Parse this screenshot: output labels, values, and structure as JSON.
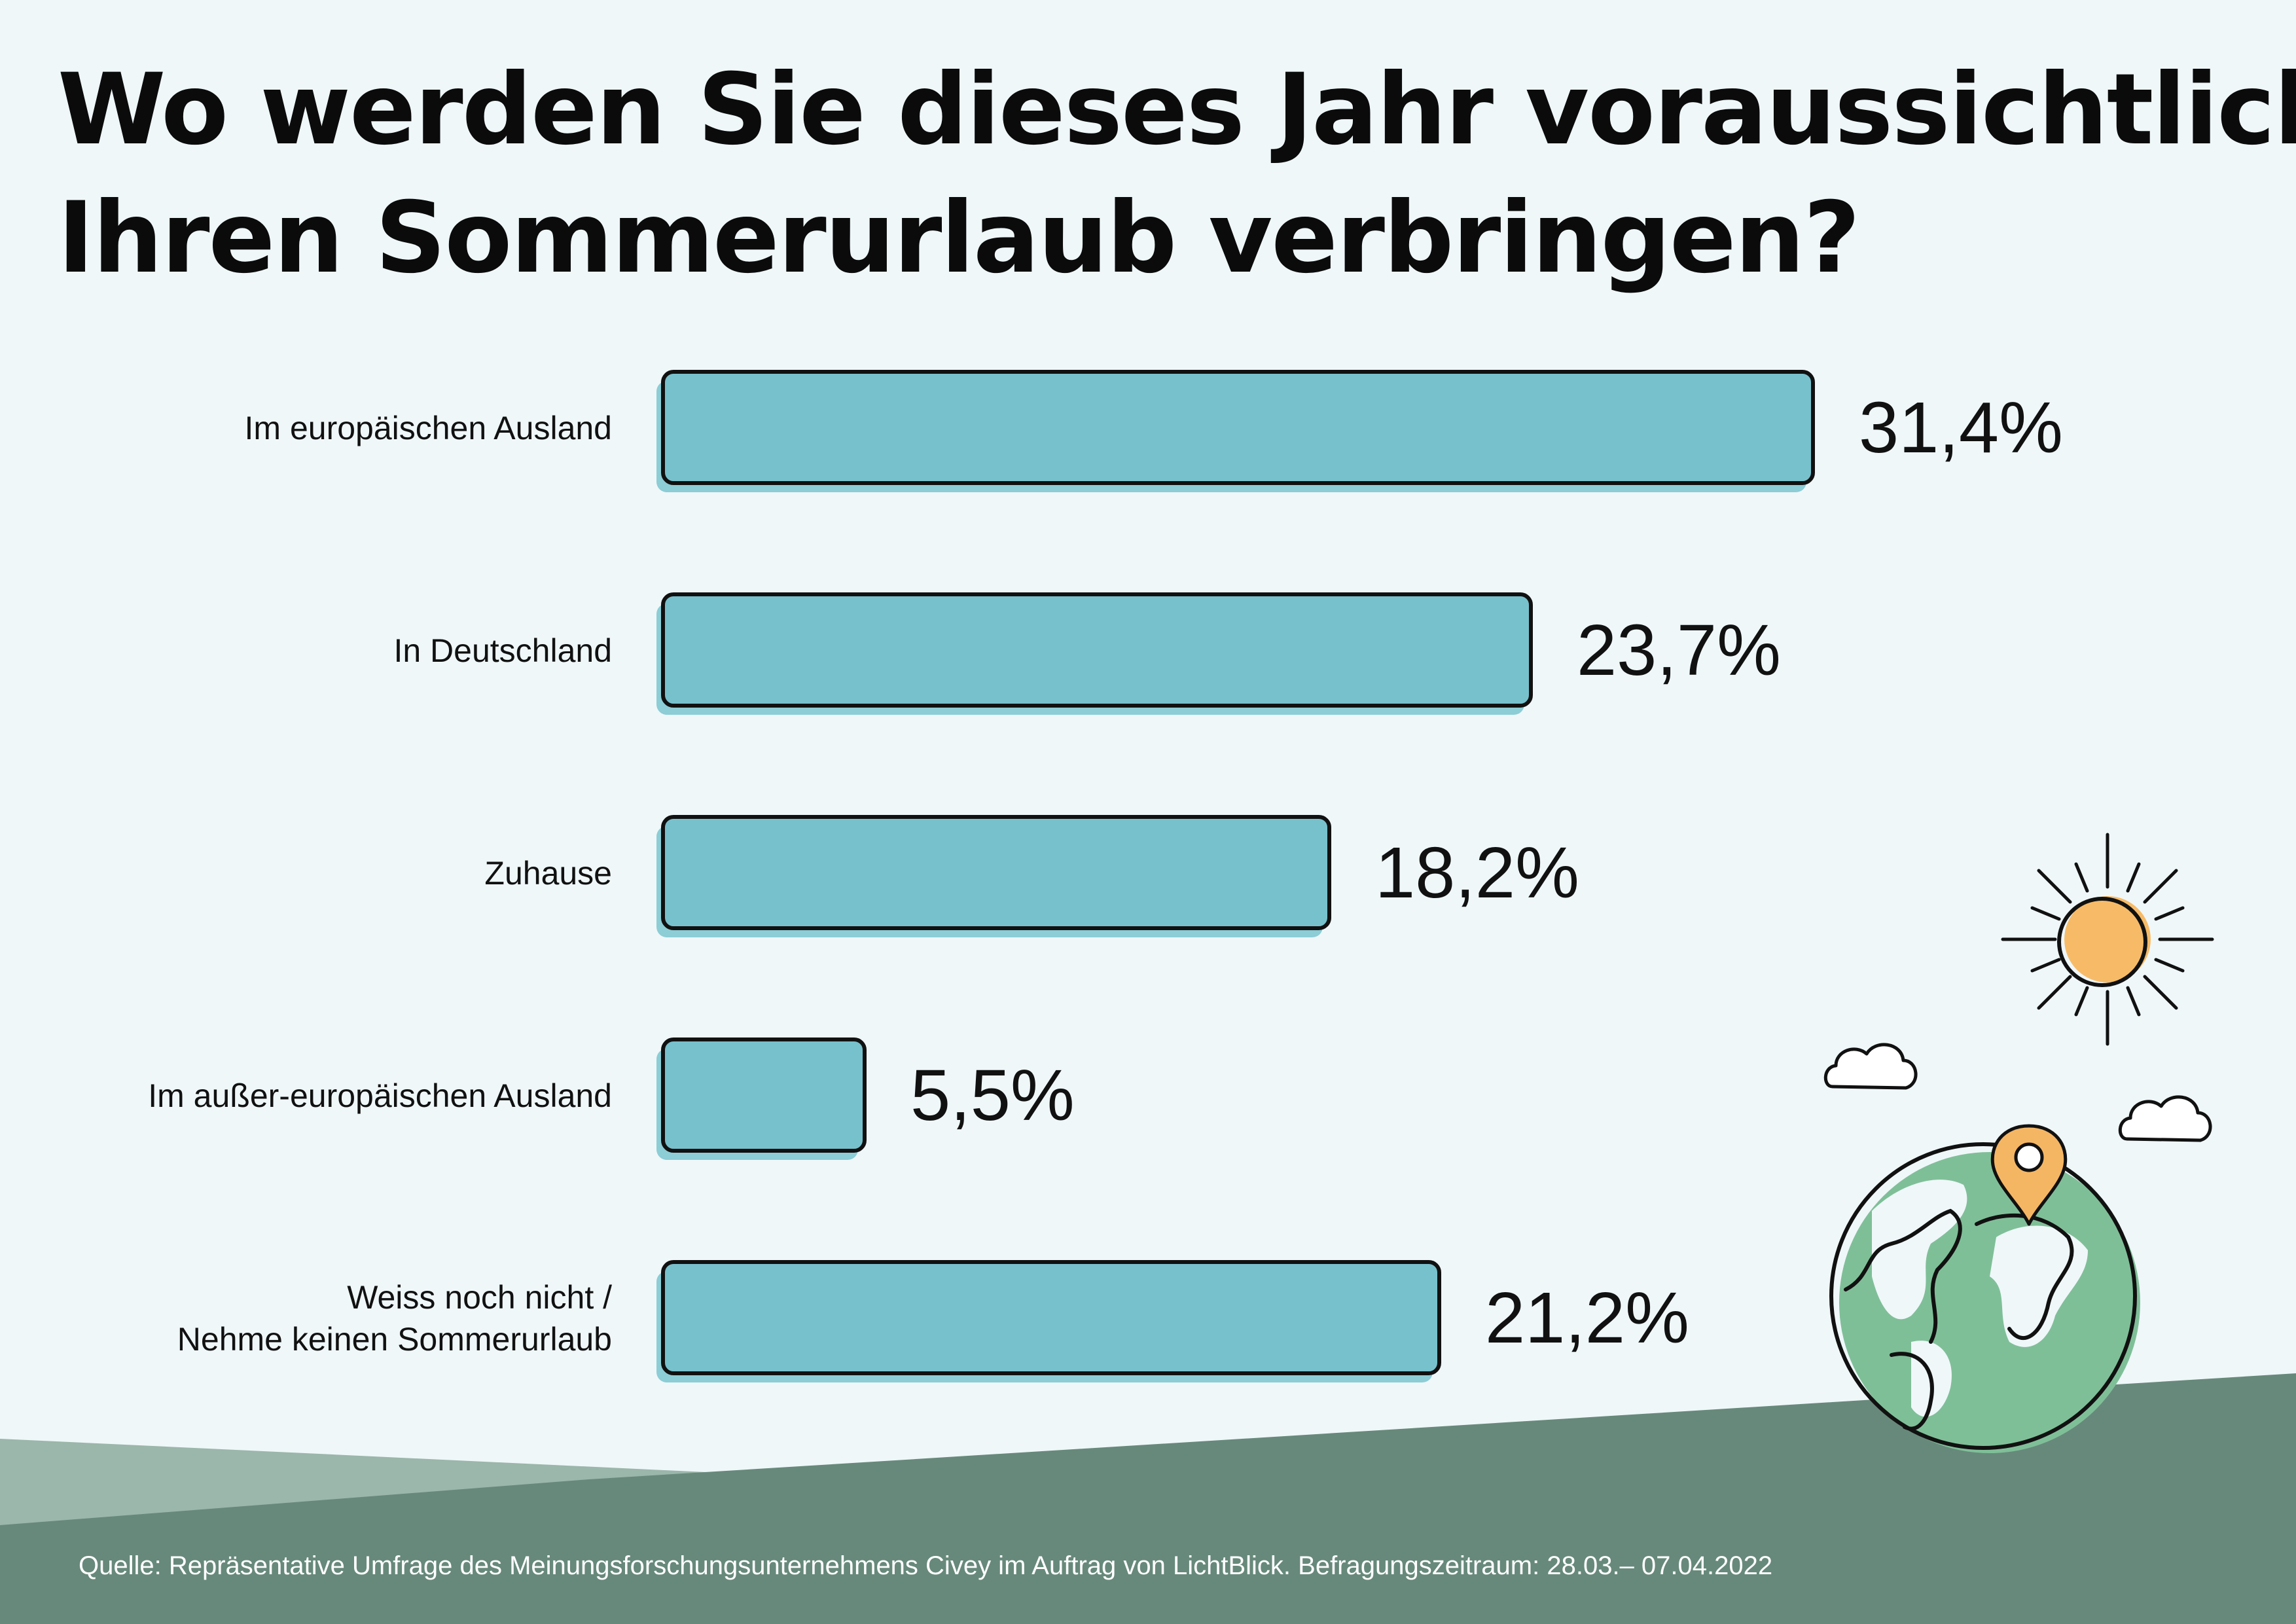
{
  "title_lines": [
    "Wo werden Sie dieses Jahr voraussichtlich",
    "Ihren Sommerurlaub verbringen?"
  ],
  "source": "Quelle: Repräsentative Umfrage des Meinungsforschungsunternehmens Civey im Auftrag von LichtBlick. Befragungszeitraum: 28.03.– 07.04.2022",
  "colors": {
    "background": "#eff7f9",
    "bar_fill": "#77c1cd",
    "bar_shadow": "#8ccdd6",
    "bar_outline": "#111111",
    "ground_dark": "#67897b",
    "ground_light": "#9bb6aa",
    "globe_land": "#7fbf98",
    "sun": "#f7bb67",
    "pin": "#f5b664"
  },
  "illustration": {
    "icons": [
      "sun-icon",
      "cloud-icon",
      "cloud-icon",
      "location-pin-icon",
      "globe-icon"
    ]
  },
  "chart_data": {
    "type": "bar",
    "orientation": "horizontal",
    "title": "Wo werden Sie dieses Jahr voraussichtlich Ihren Sommerurlaub verbringen?",
    "categories": [
      [
        "Im europäischen Ausland"
      ],
      [
        "In Deutschland"
      ],
      [
        "Zuhause"
      ],
      [
        "Im außer-europäischen Ausland"
      ],
      [
        "Weiss noch nicht /",
        "Nehme keinen Sommerurlaub"
      ]
    ],
    "values": [
      31.4,
      23.7,
      18.2,
      5.5,
      21.2
    ],
    "value_labels": [
      "31,4%",
      "23,7%",
      "18,2%",
      "5,5%",
      "21,2%"
    ],
    "unit": "%",
    "xlim": [
      0,
      31.4
    ],
    "grid": false,
    "legend": "none"
  }
}
